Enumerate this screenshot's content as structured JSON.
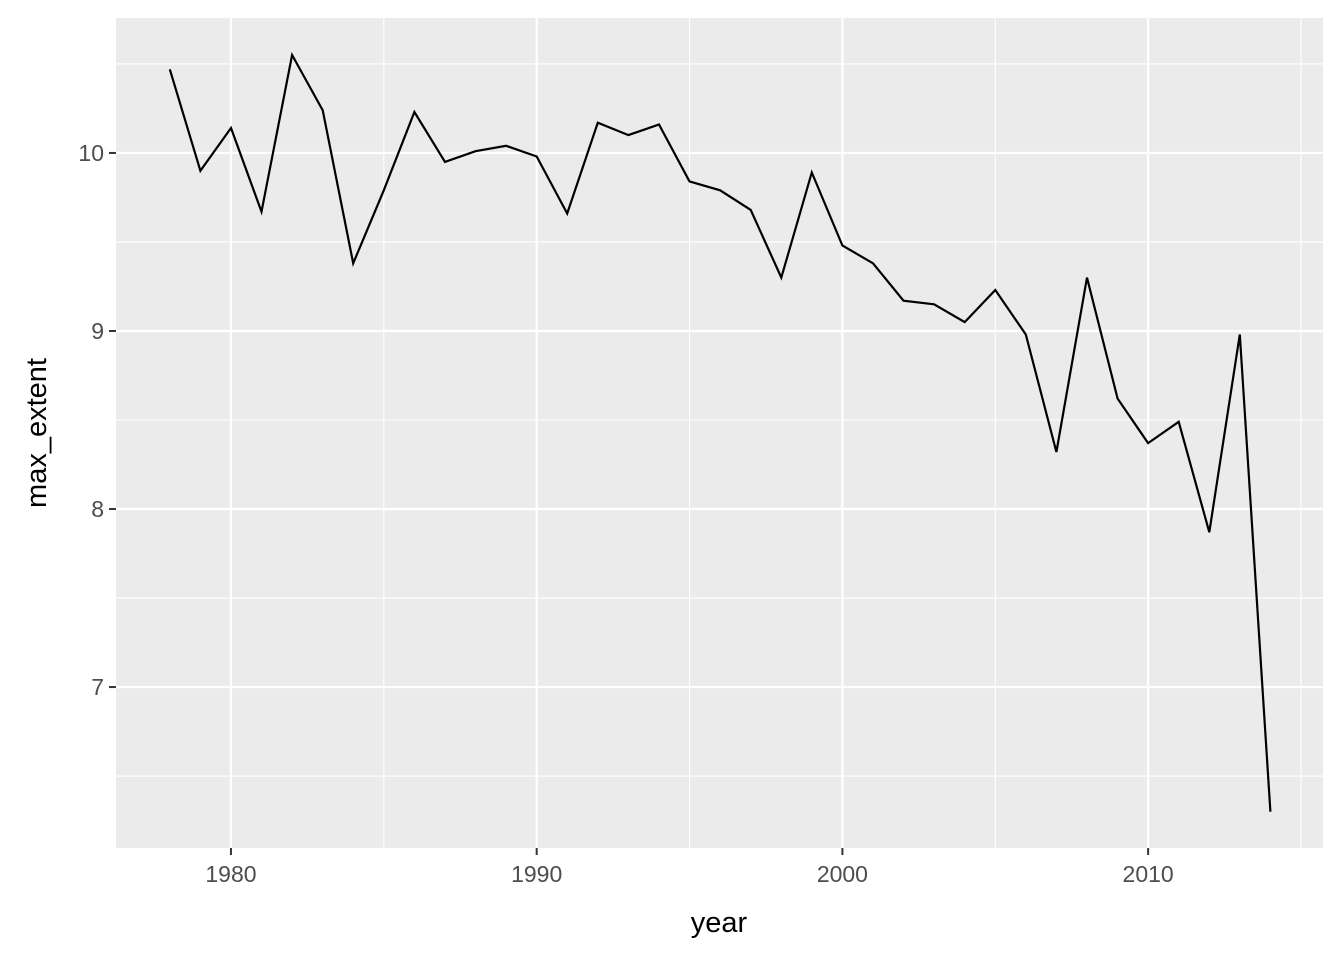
{
  "chart_data": {
    "type": "line",
    "title": "",
    "xlabel": "year",
    "ylabel": "max_extent",
    "xlim": [
      1976.24,
      2015.72
    ],
    "ylim": [
      6.096,
      10.758
    ],
    "x_ticks": [
      1980,
      1990,
      2000,
      2010
    ],
    "x_tick_labels": [
      "1980",
      "1990",
      "2000",
      "2010"
    ],
    "y_ticks": [
      7,
      8,
      9,
      10
    ],
    "y_tick_labels": [
      "7",
      "8",
      "9",
      "10"
    ],
    "grid": true,
    "background": "#EBEBEB",
    "line_color": "#000000",
    "x": [
      1978,
      1979,
      1980,
      1981,
      1982,
      1983,
      1984,
      1985,
      1986,
      1987,
      1988,
      1989,
      1990,
      1991,
      1992,
      1993,
      1994,
      1995,
      1996,
      1997,
      1998,
      1999,
      2000,
      2001,
      2002,
      2003,
      2004,
      2005,
      2006,
      2007,
      2008,
      2009,
      2010,
      2011,
      2012,
      2013,
      2014
    ],
    "y": [
      10.47,
      9.9,
      10.14,
      9.67,
      10.55,
      10.24,
      9.38,
      9.79,
      10.23,
      9.95,
      10.01,
      10.04,
      9.98,
      9.66,
      10.17,
      10.1,
      10.16,
      9.84,
      9.79,
      9.68,
      9.3,
      9.89,
      9.48,
      9.38,
      9.17,
      9.15,
      9.05,
      9.23,
      8.98,
      8.32,
      9.3,
      8.62,
      8.37,
      8.49,
      7.87,
      8.98,
      6.3
    ]
  }
}
